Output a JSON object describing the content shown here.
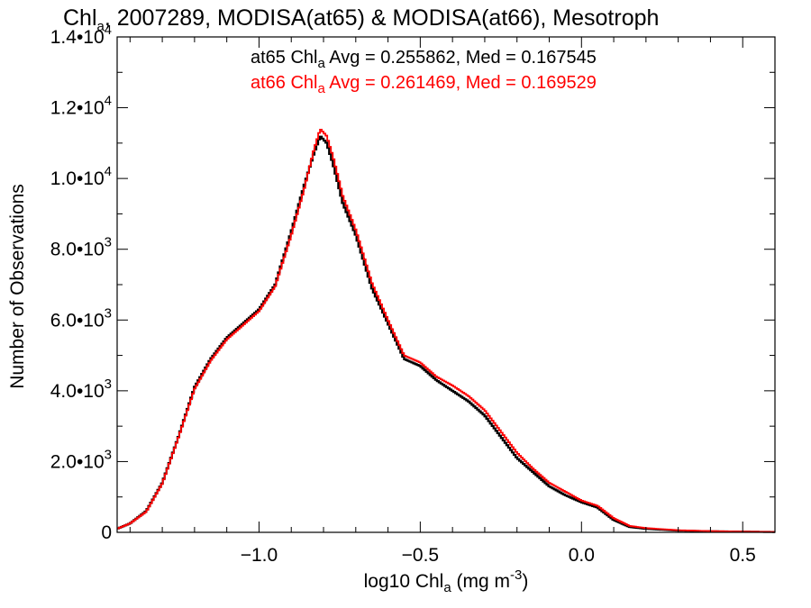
{
  "chart_data": {
    "type": "line",
    "title": {
      "pre": "Chl",
      "sub": "a",
      "post": ", 2007289, MODISA(at65) & MODISA(at66), Mesotroph"
    },
    "xlabel": {
      "pre": "log10 Chl",
      "sub": "a",
      "mid": " (mg m",
      "sup": "-3",
      "post": ")"
    },
    "ylabel": "Number of Observations",
    "xlim": [
      -1.44,
      0.6
    ],
    "ylim": [
      0,
      14000
    ],
    "x_ticks": [
      {
        "value": -1.0,
        "label": "−1.0"
      },
      {
        "value": -0.5,
        "label": "−0.5"
      },
      {
        "value": 0.0,
        "label": "0.0"
      },
      {
        "value": 0.5,
        "label": "0.5"
      }
    ],
    "y_ticks": [
      {
        "value": 0,
        "mant": "0",
        "exp": ""
      },
      {
        "value": 2000,
        "mant": "2.0•10",
        "exp": "3"
      },
      {
        "value": 4000,
        "mant": "4.0•10",
        "exp": "3"
      },
      {
        "value": 6000,
        "mant": "6.0•10",
        "exp": "3"
      },
      {
        "value": 8000,
        "mant": "8.0•10",
        "exp": "3"
      },
      {
        "value": 10000,
        "mant": "1.0•10",
        "exp": "4"
      },
      {
        "value": 12000,
        "mant": "1.2•10",
        "exp": "4"
      },
      {
        "value": 14000,
        "mant": "1.4•10",
        "exp": "4"
      }
    ],
    "stats": [
      {
        "color": "#000000",
        "pre": "at65 Chl",
        "sub": "a",
        "post": " Avg = 0.255862, Med = 0.167545"
      },
      {
        "color": "#ff0000",
        "pre": "at66 Chl",
        "sub": "a",
        "post": " Avg = 0.261469, Med = 0.169529"
      }
    ],
    "x": [
      -1.44,
      -1.4,
      -1.35,
      -1.3,
      -1.25,
      -1.2,
      -1.15,
      -1.1,
      -1.05,
      -1.0,
      -0.95,
      -0.9,
      -0.86,
      -0.83,
      -0.81,
      -0.79,
      -0.77,
      -0.74,
      -0.7,
      -0.65,
      -0.6,
      -0.55,
      -0.5,
      -0.45,
      -0.4,
      -0.35,
      -0.3,
      -0.25,
      -0.2,
      -0.15,
      -0.1,
      -0.05,
      0.0,
      0.05,
      0.1,
      0.15,
      0.2,
      0.3,
      0.4,
      0.5,
      0.6
    ],
    "series": [
      {
        "color": "#000000",
        "values": [
          100,
          250,
          600,
          1400,
          2700,
          4100,
          4900,
          5500,
          5900,
          6300,
          7000,
          8500,
          9800,
          10700,
          11200,
          11000,
          10400,
          9300,
          8400,
          6900,
          5900,
          4900,
          4700,
          4300,
          4000,
          3700,
          3300,
          2700,
          2100,
          1700,
          1300,
          1050,
          850,
          700,
          350,
          150,
          100,
          50,
          30,
          20,
          10
        ]
      },
      {
        "color": "#ff0000",
        "values": [
          100,
          250,
          580,
          1380,
          2680,
          4050,
          4850,
          5450,
          5850,
          6250,
          6950,
          8400,
          9700,
          10800,
          11400,
          11200,
          10600,
          9500,
          8550,
          7050,
          6000,
          5000,
          4800,
          4400,
          4150,
          3850,
          3450,
          2850,
          2250,
          1800,
          1400,
          1150,
          900,
          750,
          400,
          180,
          120,
          60,
          35,
          22,
          12
        ]
      }
    ]
  }
}
